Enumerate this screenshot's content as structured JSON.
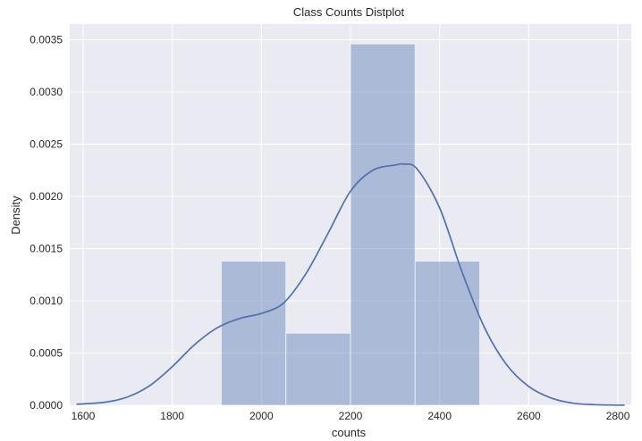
{
  "chart_data": {
    "type": "bar",
    "title": "Class Counts Distplot",
    "xlabel": "counts",
    "ylabel": "Density",
    "xlim": [
      1570,
      2830
    ],
    "ylim": [
      0,
      0.00365
    ],
    "x_ticks": [
      1600,
      1800,
      2000,
      2200,
      2400,
      2600,
      2800
    ],
    "x_tick_labels": [
      "1600",
      "1800",
      "2000",
      "2200",
      "2400",
      "2600",
      "2800"
    ],
    "y_ticks": [
      0,
      0.0005,
      0.001,
      0.0015,
      0.002,
      0.0025,
      0.003,
      0.0035
    ],
    "y_tick_labels": [
      "0.0000",
      "0.0005",
      "0.0010",
      "0.0015",
      "0.0020",
      "0.0025",
      "0.0030",
      "0.0035"
    ],
    "grid": true,
    "histogram": {
      "bins": [
        {
          "start": 1910,
          "end": 2055,
          "density": 0.00138
        },
        {
          "start": 2055,
          "end": 2200,
          "density": 0.00069
        },
        {
          "start": 2200,
          "end": 2345,
          "density": 0.00346
        },
        {
          "start": 2345,
          "end": 2490,
          "density": 0.00138
        }
      ],
      "color": "#4C72B0"
    },
    "kde": {
      "color": "#4C72B0",
      "x": [
        1585,
        1650,
        1700,
        1750,
        1800,
        1850,
        1900,
        1950,
        2000,
        2050,
        2100,
        2150,
        2200,
        2250,
        2300,
        2320,
        2350,
        2400,
        2450,
        2500,
        2550,
        2600,
        2650,
        2700,
        2750,
        2815
      ],
      "y": [
        1e-05,
        3e-05,
        8e-05,
        0.00019,
        0.00037,
        0.00058,
        0.00074,
        0.00083,
        0.00088,
        0.00098,
        0.00126,
        0.00165,
        0.00205,
        0.00225,
        0.0023,
        0.00231,
        0.00226,
        0.00189,
        0.00128,
        0.00075,
        0.00039,
        0.00018,
        7e-05,
        2e-05,
        6e-06,
        1e-06
      ]
    },
    "background": "#EAEAF2",
    "grid_color": "#FFFFFF"
  }
}
